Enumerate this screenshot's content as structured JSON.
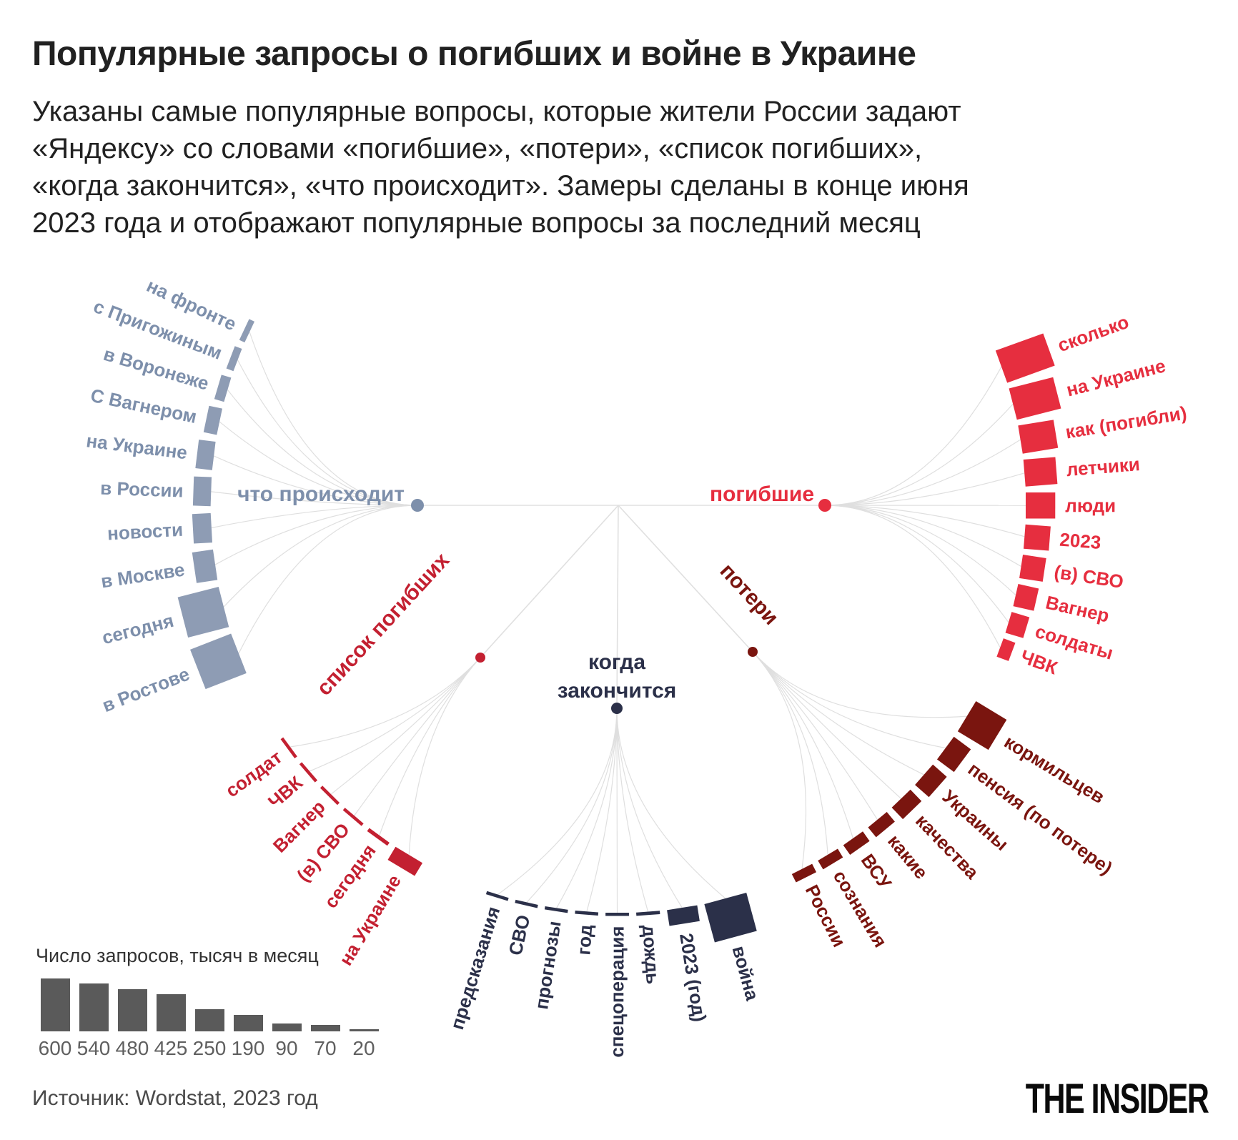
{
  "header": {
    "title": "Популярные запросы о погибших и войне в Украине",
    "subtitle_lines": [
      "Указаны самые популярные вопросы, которые жители России задают",
      "«Яндексу» со словами «погибшие», «потери», «список погибших»,",
      "«когда закончится», «что происходит». Замеры сделаны в конце июня",
      "2023 года и отображают популярные вопросы за последний месяц"
    ]
  },
  "footer": {
    "source": "Источник: Wordstat, 2023 год",
    "logo": "THE INSIDER"
  },
  "chart_data": {
    "type": "radial-network",
    "title": "Популярные запросы о погибших и войне в Украине",
    "unit": "тысяч запросов в месяц",
    "legend": {
      "title": "Число запросов, тысяч в месяц",
      "values": [
        600,
        540,
        480,
        425,
        250,
        190,
        90,
        70,
        20
      ]
    },
    "groups": [
      {
        "label": "что происходит",
        "color": "#8e9cb4",
        "accent": "#7d8fab",
        "queries": [
          {
            "label": "на фронте",
            "value": 70
          },
          {
            "label": "с Пригожиным",
            "value": 90
          },
          {
            "label": "в Воронеже",
            "value": 120
          },
          {
            "label": "С Вагнером",
            "value": 160
          },
          {
            "label": "на Украине",
            "value": 200
          },
          {
            "label": "в России",
            "value": 210
          },
          {
            "label": "новости",
            "value": 220
          },
          {
            "label": "в Москве",
            "value": 250
          },
          {
            "label": "сегодня",
            "value": 500
          },
          {
            "label": "в Ростове",
            "value": 520
          }
        ]
      },
      {
        "label": "погибшие",
        "color": "#e62e3f",
        "accent": "#e62e3f",
        "queries": [
          {
            "label": "сколько",
            "value": 600
          },
          {
            "label": "на Украине",
            "value": 540
          },
          {
            "label": "как (погибли)",
            "value": 425
          },
          {
            "label": "летчики",
            "value": 380
          },
          {
            "label": "люди",
            "value": 350
          },
          {
            "label": "2023",
            "value": 300
          },
          {
            "label": "(в) СВО",
            "value": 280
          },
          {
            "label": "Вагнер",
            "value": 250
          },
          {
            "label": "солдаты",
            "value": 220
          },
          {
            "label": "ЧВК",
            "value": 150
          }
        ]
      },
      {
        "label": "список погибших",
        "color": "#c32031",
        "accent": "#c32031",
        "queries": [
          {
            "label": "солдат",
            "value": 20
          },
          {
            "label": "ЧВК",
            "value": 25
          },
          {
            "label": "Вагнер",
            "value": 30
          },
          {
            "label": "(в) СВО",
            "value": 35
          },
          {
            "label": "сегодня",
            "value": 45
          },
          {
            "label": "на Украине",
            "value": 180
          }
        ]
      },
      {
        "label": "когда закончится",
        "color": "#2b3049",
        "accent": "#2b3049",
        "queries": [
          {
            "label": "предсказания",
            "value": 20
          },
          {
            "label": "СВО",
            "value": 25
          },
          {
            "label": "прогнозы",
            "value": 30
          },
          {
            "label": "год",
            "value": 30
          },
          {
            "label": "спецоперация",
            "value": 35
          },
          {
            "label": "дождь",
            "value": 40
          },
          {
            "label": "2023 (год)",
            "value": 190
          },
          {
            "label": "война",
            "value": 470
          }
        ]
      },
      {
        "label": "потери",
        "color": "#7a150f",
        "accent": "#7a150f",
        "queries": [
          {
            "label": "кормильцев",
            "value": 425
          },
          {
            "label": "пенсия (по потере)",
            "value": 250
          },
          {
            "label": "Украины",
            "value": 220
          },
          {
            "label": "качества",
            "value": 190
          },
          {
            "label": "какие",
            "value": 150
          },
          {
            "label": "ВСУ",
            "value": 140
          },
          {
            "label": "сознания",
            "value": 120
          },
          {
            "label": "России",
            "value": 110
          }
        ]
      }
    ]
  }
}
